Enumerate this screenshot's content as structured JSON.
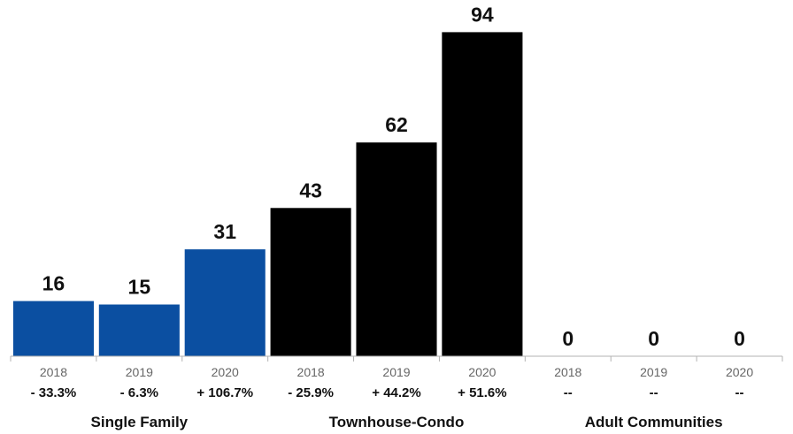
{
  "chart_data": {
    "type": "bar",
    "ylim": [
      0,
      100
    ],
    "bar_width_fraction": 0.94,
    "groups": [
      {
        "name": "Single Family",
        "color": "#0b4fa1",
        "bars": [
          {
            "year": "2018",
            "value": 16,
            "label": "16",
            "change": "- 33.3%"
          },
          {
            "year": "2019",
            "value": 15,
            "label": "15",
            "change": "- 6.3%"
          },
          {
            "year": "2020",
            "value": 31,
            "label": "31",
            "change": "+ 106.7%"
          }
        ]
      },
      {
        "name": "Townhouse-Condo",
        "color": "#000000",
        "bars": [
          {
            "year": "2018",
            "value": 43,
            "label": "43",
            "change": "- 25.9%"
          },
          {
            "year": "2019",
            "value": 62,
            "label": "62",
            "change": "+ 44.2%"
          },
          {
            "year": "2020",
            "value": 94,
            "label": "94",
            "change": "+ 51.6%"
          }
        ]
      },
      {
        "name": "Adult Communities",
        "color": "#888888",
        "bars": [
          {
            "year": "2018",
            "value": 0,
            "label": "0",
            "change": "--"
          },
          {
            "year": "2019",
            "value": 0,
            "label": "0",
            "change": "--"
          },
          {
            "year": "2020",
            "value": 0,
            "label": "0",
            "change": "--"
          }
        ]
      }
    ]
  }
}
